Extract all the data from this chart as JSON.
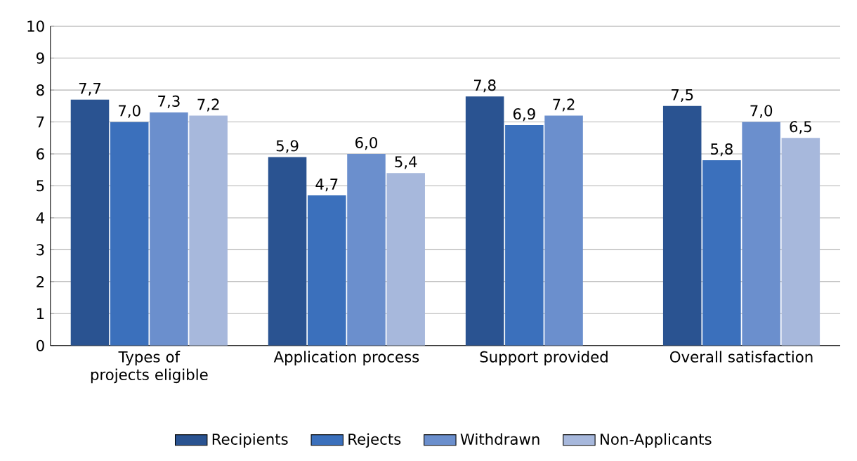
{
  "chart_data": {
    "type": "bar",
    "categories": [
      "Types of projects eligible",
      "Application process",
      "Support provided",
      "Overall satisfaction"
    ],
    "series": [
      {
        "name": "Recipients",
        "color": "#2a5391",
        "values": [
          7.7,
          5.9,
          7.8,
          7.5
        ],
        "value_labels": [
          "7,7",
          "5,9",
          "7,8",
          "7,5"
        ]
      },
      {
        "name": "Rejects",
        "color": "#3b70bc",
        "values": [
          7.0,
          4.7,
          6.9,
          5.8
        ],
        "value_labels": [
          "7,0",
          "4,7",
          "6,9",
          "5,8"
        ]
      },
      {
        "name": "Withdrawn",
        "color": "#6b8fcd",
        "values": [
          7.3,
          6.0,
          7.2,
          7.0
        ],
        "value_labels": [
          "7,3",
          "6,0",
          "7,2",
          "7,0"
        ]
      },
      {
        "name": "Non-Applicants",
        "color": "#a7b8dc",
        "values": [
          7.2,
          5.4,
          null,
          6.5
        ],
        "value_labels": [
          "7,2",
          "5,4",
          null,
          "6,5"
        ]
      }
    ],
    "ylim": [
      0,
      10
    ],
    "yticks": [
      0,
      1,
      2,
      3,
      4,
      5,
      6,
      7,
      8,
      9,
      10
    ],
    "grid": "y",
    "legend": "bottom"
  }
}
